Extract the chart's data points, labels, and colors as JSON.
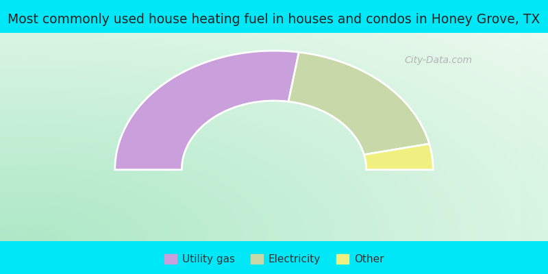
{
  "title": "Most commonly used house heating fuel in houses and condos in Honey Grove, TX",
  "slices": [
    {
      "label": "Utility gas",
      "value": 55.0,
      "color": "#c9a0dc"
    },
    {
      "label": "Electricity",
      "value": 38.0,
      "color": "#c8d8a8"
    },
    {
      "label": "Other",
      "value": 7.0,
      "color": "#f0f080"
    }
  ],
  "bg_colors": [
    "#a8e8c8",
    "#ffffff"
  ],
  "cyan_color": "#00e8f8",
  "donut_outer": 1.0,
  "donut_width": 0.42,
  "title_fontsize": 13.5,
  "title_color": "#222222",
  "legend_text_color": "#333333",
  "watermark_text": "City-Data.com",
  "watermark_color": "#aaaaaa",
  "watermark_fontsize": 10
}
